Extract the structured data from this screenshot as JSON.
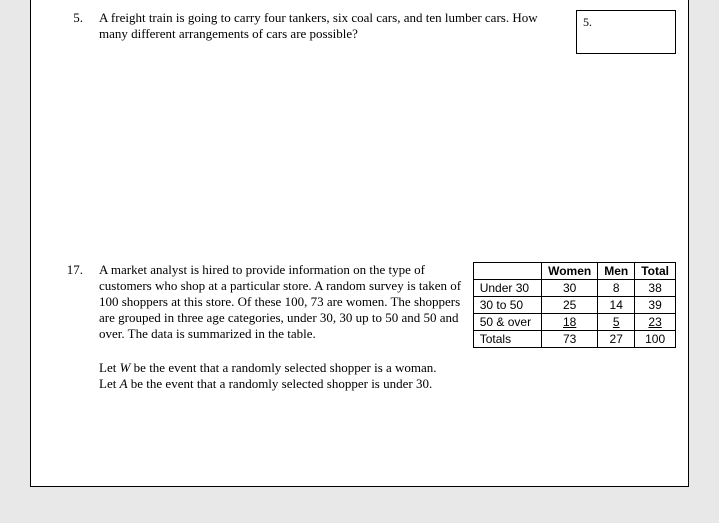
{
  "q5": {
    "number": "5.",
    "text": "A freight train is going to carry four tankers, six coal cars, and ten lumber cars.  How many different arrangements of cars are possible?",
    "box_label": "5."
  },
  "q17": {
    "number": "17.",
    "text": "A market analyst is hired to provide information on the type of customers who shop at a particular store. A random survey is taken of 100 shoppers at this store. Of these 100, 73 are women. The shoppers are grouped in three age categories, under 30, 30 up to 50 and 50 and over. The data is summarized in the table.",
    "let_w": "Let W be the event that a randomly selected shopper is a woman.",
    "let_a": "Let A be the event that a randomly selected shopper is under 30.",
    "table": {
      "headers": [
        "",
        "Women",
        "Men",
        "Total"
      ],
      "rows": [
        {
          "label": "Under 30",
          "women": "30",
          "men": "8",
          "total": "38",
          "underline": false
        },
        {
          "label": "30 to 50",
          "women": "25",
          "men": "14",
          "total": "39",
          "underline": false
        },
        {
          "label": "50 & over",
          "women": "18",
          "men": "5",
          "total": "23",
          "underline": true
        },
        {
          "label": "Totals",
          "women": "73",
          "men": "27",
          "total": "100",
          "underline": false
        }
      ]
    }
  }
}
